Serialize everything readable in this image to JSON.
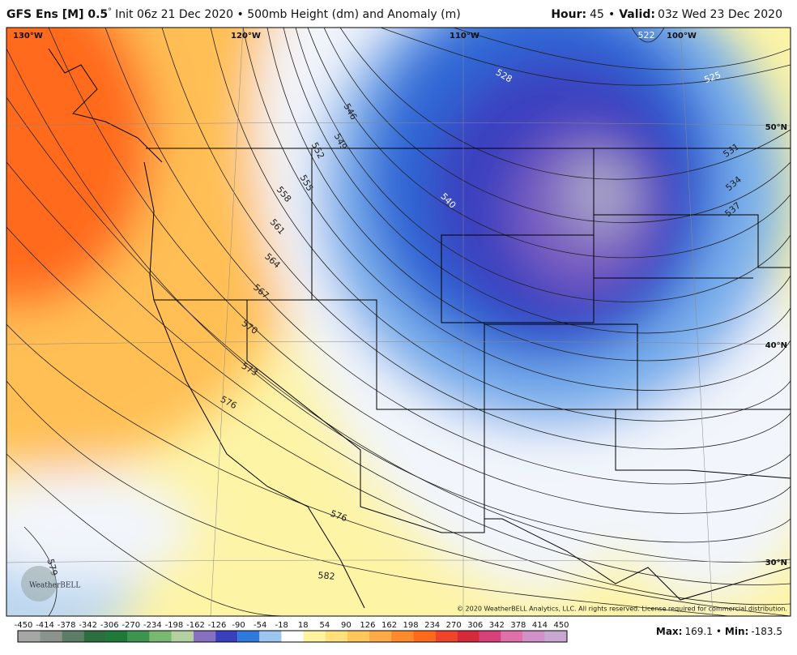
{
  "header": {
    "model": "GFS Ens [M] 0.5",
    "degree": "°",
    "init": "Init 06z 21 Dec 2020 • 500mb Height (dm) and Anomaly (m)",
    "hour_label": "Hour:",
    "hour": "45",
    "sep": "•",
    "valid_label": "Valid:",
    "valid": "03z Wed 23 Dec 2020"
  },
  "map": {
    "longitudes": [
      "130°W",
      "120°W",
      "110°W",
      "100°W"
    ],
    "latitudes": [
      "50°N",
      "40°N",
      "30°N"
    ],
    "contour_labels": [
      "522",
      "525",
      "528",
      "531",
      "534",
      "537",
      "540",
      "546",
      "549",
      "552",
      "555",
      "558",
      "561",
      "564",
      "567",
      "570",
      "573",
      "576",
      "576",
      "579",
      "582"
    ],
    "logo": "WeatherBELL",
    "copyright": "© 2020 WeatherBELL Analytics, LLC. All rights reserved. License required for commercial distribution."
  },
  "colorbar": {
    "labels": [
      -450,
      -414,
      -378,
      -342,
      -306,
      -270,
      -234,
      -198,
      -162,
      -126,
      -90,
      -54,
      -18,
      18,
      54,
      90,
      126,
      162,
      198,
      234,
      270,
      306,
      342,
      378,
      414,
      450
    ],
    "colors": [
      "#a6a8a6",
      "#8a948c",
      "#5e7d66",
      "#2d6e40",
      "#1f7a3a",
      "#3c9450",
      "#78b870",
      "#b4d0a0",
      "#8a70c0",
      "#3a3fbf",
      "#2f78dc",
      "#9cc6f0",
      "#ffffff",
      "#fff3a0",
      "#ffe07a",
      "#ffc75a",
      "#ffab45",
      "#ff8a2a",
      "#ff6a1a",
      "#f0442a",
      "#d62a3a",
      "#d8407a",
      "#e070a8",
      "#d090c8",
      "#c8a8d0"
    ]
  },
  "footer": {
    "max_label": "Max:",
    "max": "169.1",
    "sep": "•",
    "min_label": "Min:",
    "min": "-183.5"
  }
}
